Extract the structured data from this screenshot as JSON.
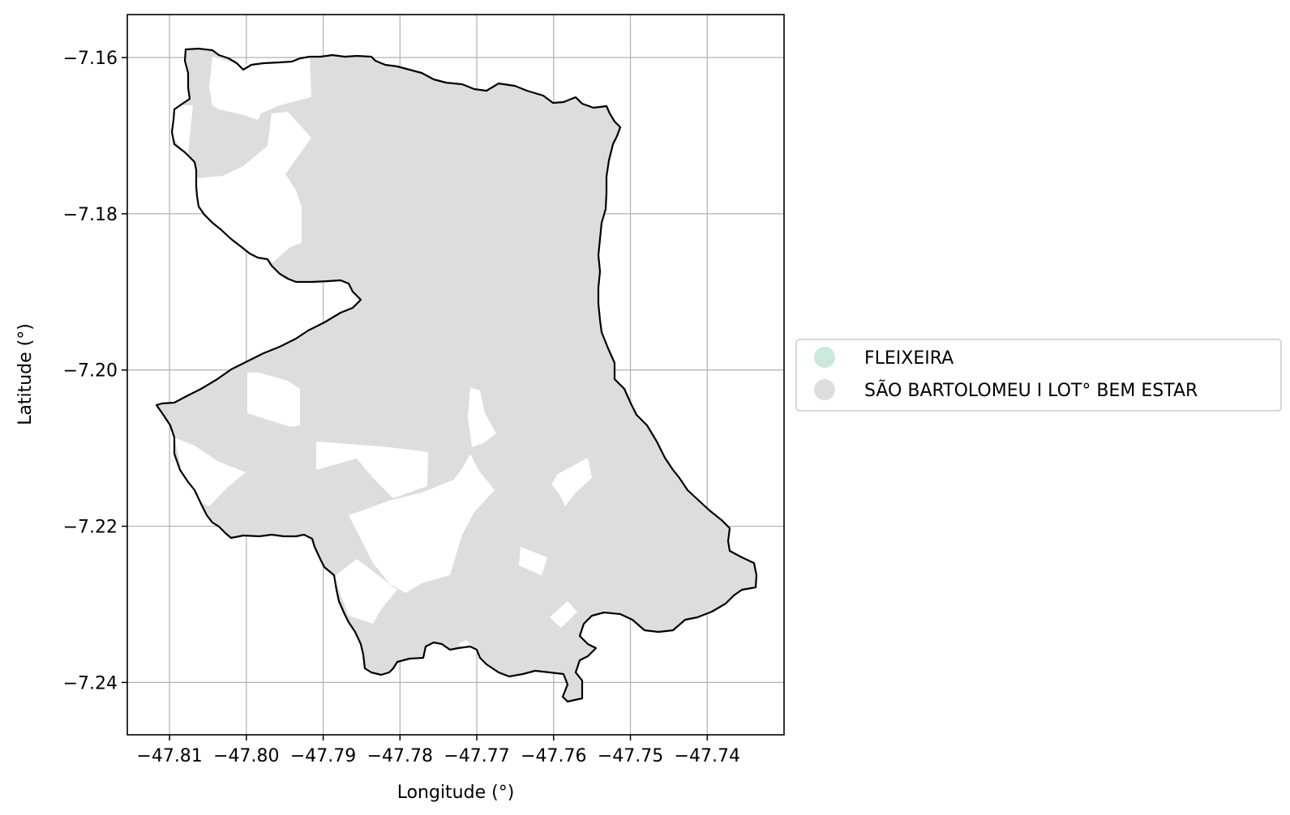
{
  "chart_data": {
    "type": "map",
    "xlabel": "Longitude (°)",
    "ylabel": "Latitude (°)",
    "xlim": [
      -47.8155,
      -47.73
    ],
    "ylim": [
      -7.2467,
      -7.1545
    ],
    "x_ticks": [
      "−47.81",
      "−47.80",
      "−47.79",
      "−47.78",
      "−47.77",
      "−47.76",
      "−47.75",
      "−47.74"
    ],
    "x_tick_values": [
      -47.81,
      -47.8,
      -47.79,
      -47.78,
      -47.77,
      -47.76,
      -47.75,
      -47.74
    ],
    "y_ticks": [
      "−7.16",
      "−7.18",
      "−7.20",
      "−7.22",
      "−7.24"
    ],
    "y_tick_values": [
      -7.16,
      -7.18,
      -7.2,
      -7.22,
      -7.24
    ],
    "grid": true,
    "legend_placement": "right-center",
    "legend": [
      {
        "label": "FLEIXEIRA",
        "color": "#cce9dc"
      },
      {
        "label": "SÃO BARTOLOMEU I LOT° BEM ESTAR",
        "color": "#dddddd"
      }
    ],
    "fill_color": "#dddddd",
    "outline_color": "#000000",
    "grid_color": "#b0b0b0"
  }
}
